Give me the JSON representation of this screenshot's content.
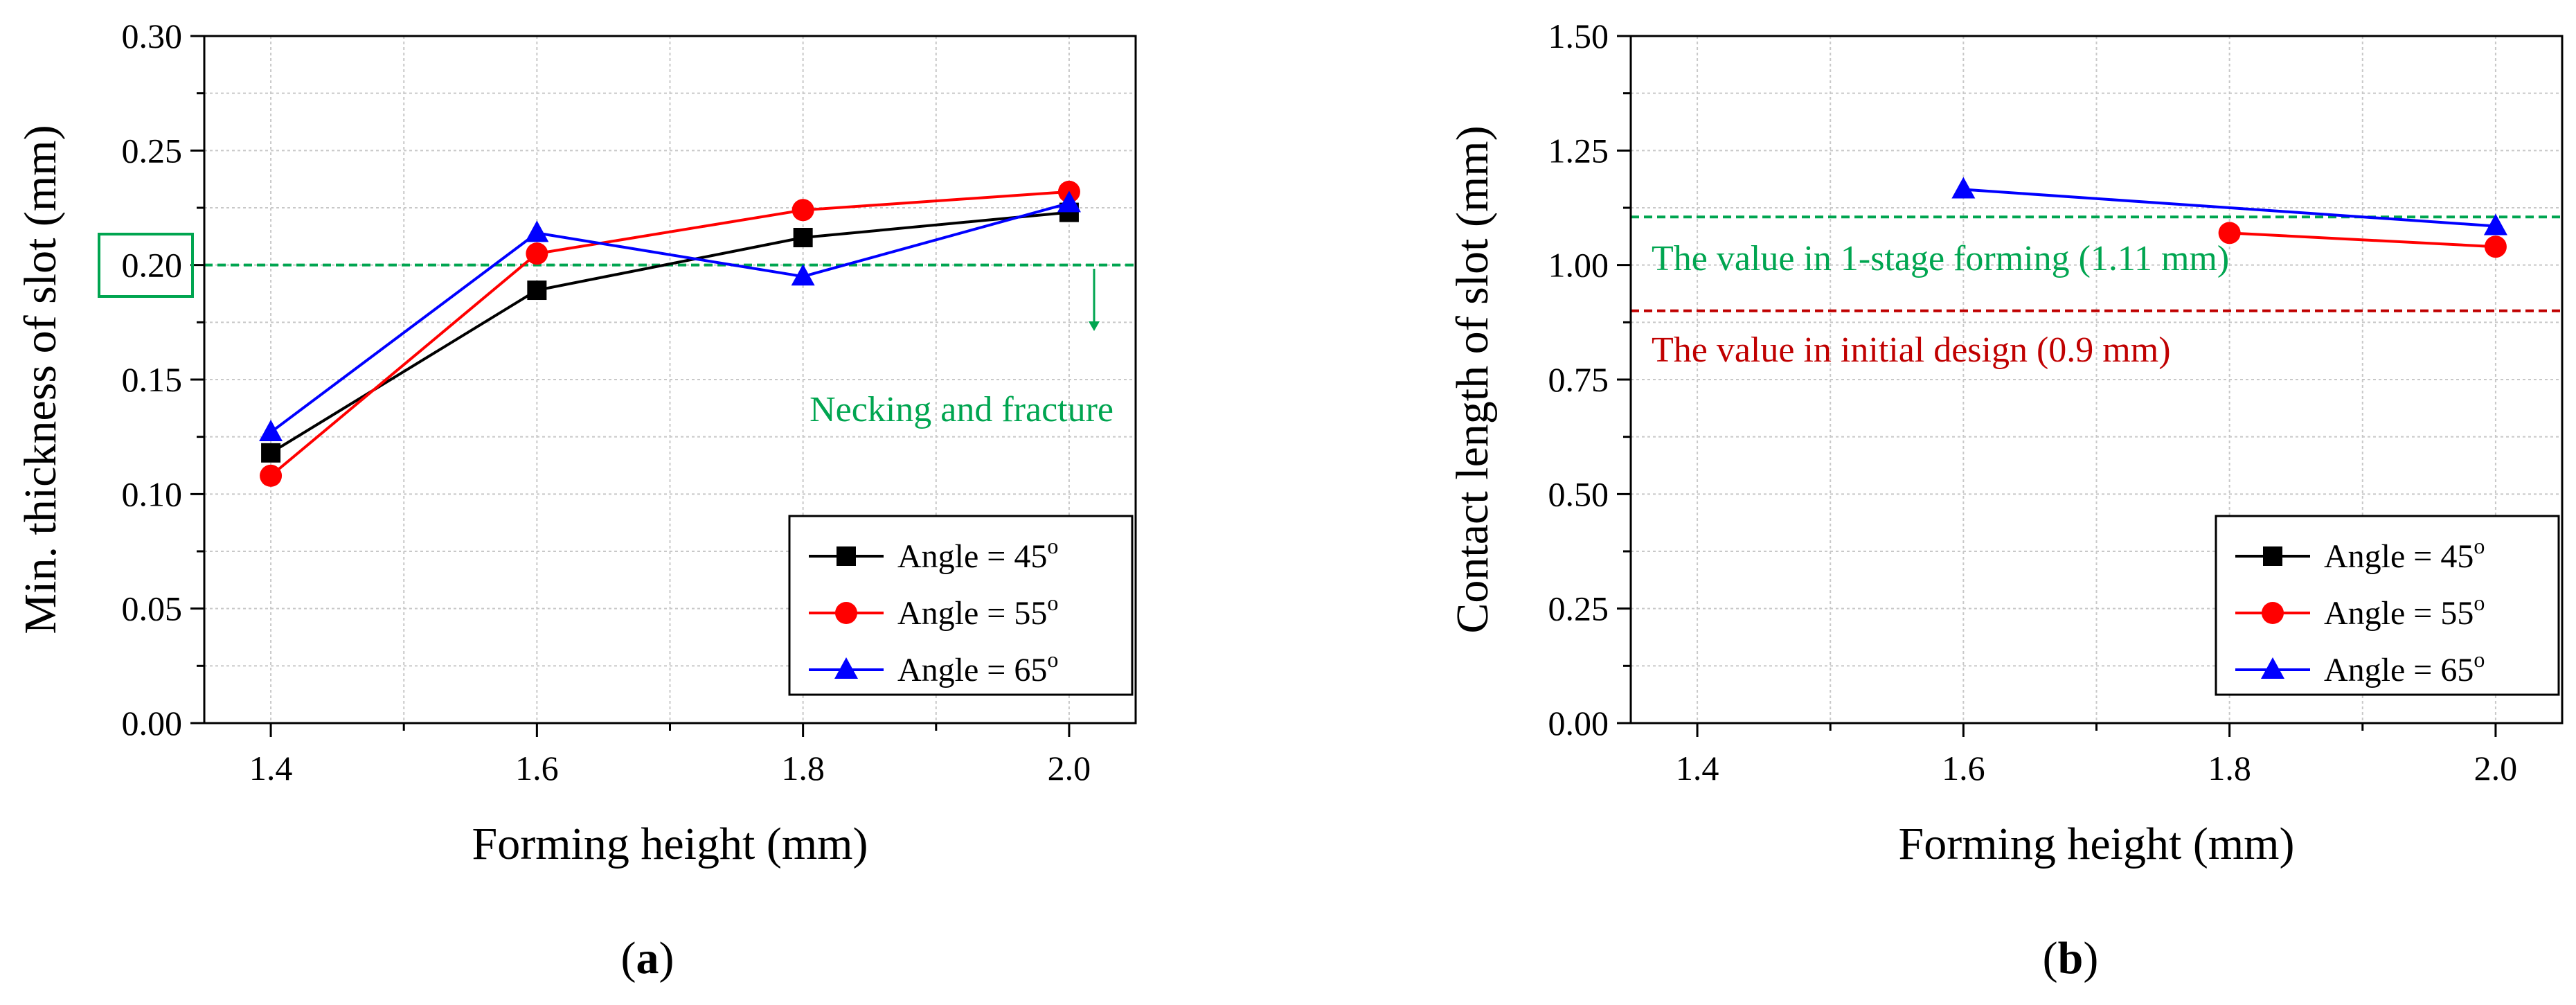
{
  "chart_data": [
    {
      "type": "line",
      "panel": "(a)",
      "panel_letter": "a",
      "xlabel": "Forming height (mm)",
      "ylabel": "Min. thickness of slot (mm)",
      "xlim": [
        1.35,
        2.05
      ],
      "ylim": [
        0.0,
        0.3
      ],
      "xticks": [
        1.4,
        1.6,
        1.8,
        2.0
      ],
      "xtick_labels": [
        "1.4",
        "1.6",
        "1.8",
        "2.0"
      ],
      "yticks": [
        0.0,
        0.05,
        0.1,
        0.15,
        0.2,
        0.25,
        0.3
      ],
      "ytick_labels": [
        "0.00",
        "0.05",
        "0.10",
        "0.15",
        "0.20",
        "0.25",
        "0.30"
      ],
      "grid": true,
      "legend_position": "bottom-right",
      "series": [
        {
          "name": "Angle = 45",
          "superscript": "o",
          "color": "#000000",
          "marker": "square",
          "x": [
            1.4,
            1.6,
            1.8,
            2.0
          ],
          "y": [
            0.118,
            0.189,
            0.212,
            0.223
          ]
        },
        {
          "name": "Angle = 55",
          "superscript": "o",
          "color": "#ff0000",
          "marker": "circle",
          "x": [
            1.4,
            1.6,
            1.8,
            2.0
          ],
          "y": [
            0.108,
            0.205,
            0.224,
            0.232
          ]
        },
        {
          "name": "Angle = 65",
          "superscript": "o",
          "color": "#0000ff",
          "marker": "triangle",
          "x": [
            1.4,
            1.6,
            1.8,
            2.0
          ],
          "y": [
            0.127,
            0.214,
            0.195,
            0.227
          ]
        }
      ],
      "reference_lines": [
        {
          "y": 0.2,
          "color": "#00a550",
          "style": "dashed"
        }
      ],
      "annotations": [
        {
          "text": "Necking and fracture",
          "color": "#00a550"
        }
      ],
      "highlight": {
        "tick": "0.20",
        "color": "#00a550"
      }
    },
    {
      "type": "line",
      "panel": "(b)",
      "panel_letter": "b",
      "xlabel": "Forming height (mm)",
      "ylabel": "Contact length of slot (mm)",
      "xlim": [
        1.35,
        2.05
      ],
      "ylim": [
        0.0,
        1.5
      ],
      "xticks": [
        1.4,
        1.6,
        1.8,
        2.0
      ],
      "xtick_labels": [
        "1.4",
        "1.6",
        "1.8",
        "2.0"
      ],
      "yticks": [
        0.0,
        0.25,
        0.5,
        0.75,
        1.0,
        1.25,
        1.5
      ],
      "ytick_labels": [
        "0.00",
        "0.25",
        "0.50",
        "0.75",
        "1.00",
        "1.25",
        "1.50"
      ],
      "grid": true,
      "legend_position": "bottom-right",
      "series": [
        {
          "name": "Angle = 45",
          "superscript": "o",
          "color": "#000000",
          "marker": "square",
          "x": [],
          "y": []
        },
        {
          "name": "Angle = 55",
          "superscript": "o",
          "color": "#ff0000",
          "marker": "circle",
          "x": [
            1.8,
            2.0
          ],
          "y": [
            1.07,
            1.04
          ]
        },
        {
          "name": "Angle = 65",
          "superscript": "o",
          "color": "#0000ff",
          "marker": "triangle",
          "x": [
            1.6,
            2.0
          ],
          "y": [
            1.165,
            1.085
          ]
        }
      ],
      "reference_lines": [
        {
          "y": 1.105,
          "color": "#00a550",
          "style": "dashed"
        },
        {
          "y": 0.9,
          "color": "#c00000",
          "style": "dashed"
        }
      ],
      "annotations": [
        {
          "text": "The value in 1-stage forming (1.11 mm)",
          "color": "#00a550"
        },
        {
          "text": "The value in initial design (0.9 mm)",
          "color": "#c00000"
        }
      ]
    }
  ]
}
